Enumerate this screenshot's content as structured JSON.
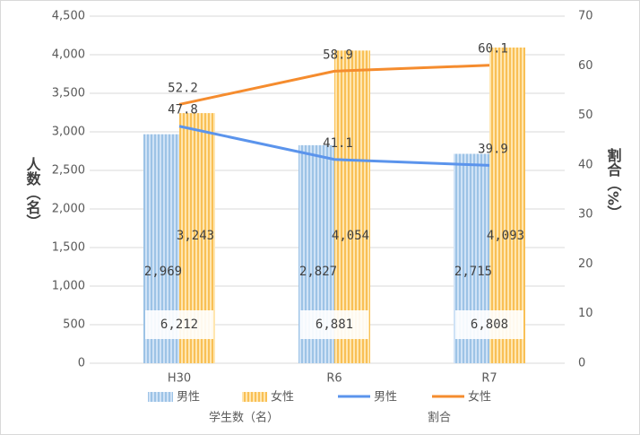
{
  "chart_data": {
    "type": "bar_line",
    "categories": [
      "H30",
      "R6",
      "R7"
    ],
    "series": [
      {
        "name": "男性",
        "type": "bar",
        "color": "#9dc3e6",
        "values": [
          2969,
          2827,
          2715
        ],
        "value_labels": [
          "2,969",
          "2,827",
          "2,715"
        ]
      },
      {
        "name": "女性",
        "type": "bar",
        "color": "#ffd27a",
        "values": [
          3243,
          4054,
          4093
        ],
        "value_labels": [
          "3,243",
          "4,054",
          "4,093"
        ]
      },
      {
        "name": "男性",
        "type": "line",
        "axis": "y2",
        "color": "#5b94ec",
        "values": [
          47.8,
          41.1,
          39.9
        ]
      },
      {
        "name": "女性",
        "type": "line",
        "axis": "y2",
        "color": "#f58c2e",
        "values": [
          52.2,
          58.9,
          60.1
        ]
      }
    ],
    "totals": [
      6212,
      6881,
      6808
    ],
    "total_labels": [
      "6,212",
      "6,881",
      "6,808"
    ],
    "y_label": "人数（名）",
    "y2_label": "割合（%）",
    "legend_titles": [
      "学生数（名）",
      "割合"
    ],
    "ylim": [
      0,
      4500
    ],
    "yticks": [
      0,
      {
        "value": 500,
        "label": "500"
      },
      {
        "value": 1000,
        "label": "1,000"
      },
      {
        "value": 1500,
        "label": "1,500"
      },
      {
        "value": 2000,
        "label": "2,000"
      },
      {
        "value": 2500,
        "label": "2,500"
      },
      {
        "value": 3000,
        "label": "3,000"
      },
      {
        "value": 3500,
        "label": "3,500"
      },
      {
        "value": 4000,
        "label": "4,000"
      },
      {
        "value": 4500,
        "label": "4,500"
      }
    ],
    "y2lim": [
      0,
      70
    ],
    "y2ticks": [
      0,
      10,
      20,
      30,
      40,
      50,
      60,
      70
    ],
    "grid": true
  }
}
